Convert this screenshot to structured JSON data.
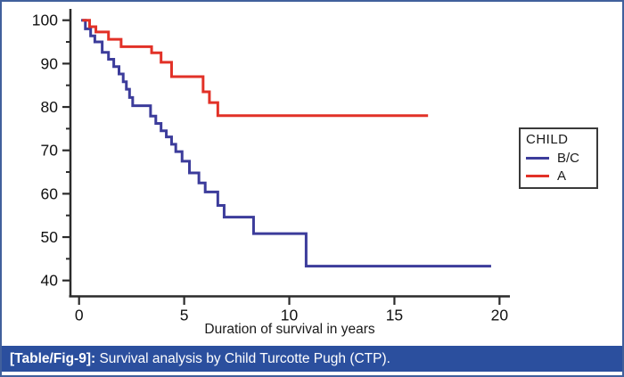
{
  "figure": {
    "caption_label": "[Table/Fig-9]:",
    "caption_text": " Survival analysis by Child Turcotte Pugh (CTP).",
    "caption_bg": "#2b4f9e",
    "border_color": "#41609c"
  },
  "chart_data": {
    "type": "line",
    "subtype": "kaplan-meier-step",
    "title": "",
    "xlabel": "Duration of survival in years",
    "ylabel": "",
    "xlim": [
      0,
      20
    ],
    "ylim": [
      40,
      100
    ],
    "x_ticks": [
      0,
      5,
      10,
      15,
      20
    ],
    "y_ticks": [
      100,
      90,
      80,
      70,
      60,
      50,
      40
    ],
    "y_minor_ticks": [
      95,
      85,
      75,
      65,
      55,
      45
    ],
    "grid": false,
    "axis_color": "#2b2b2b",
    "legend": {
      "title": "CHILD",
      "position": "right",
      "entries": [
        {
          "label": "B/C",
          "color": "#3c3c9b"
        },
        {
          "label": "A",
          "color": "#e23127"
        }
      ]
    },
    "series": [
      {
        "name": "B/C",
        "color": "#3c3c9b",
        "steps": [
          [
            0.1,
            100
          ],
          [
            0.3,
            98.0
          ],
          [
            0.55,
            96.4
          ],
          [
            0.75,
            95.0
          ],
          [
            1.1,
            92.6
          ],
          [
            1.4,
            91.0
          ],
          [
            1.65,
            89.3
          ],
          [
            1.9,
            87.6
          ],
          [
            2.1,
            85.8
          ],
          [
            2.25,
            84.1
          ],
          [
            2.4,
            82.2
          ],
          [
            2.55,
            80.3
          ],
          [
            3.4,
            77.9
          ],
          [
            3.65,
            76.2
          ],
          [
            3.9,
            74.5
          ],
          [
            4.15,
            73.1
          ],
          [
            4.4,
            71.4
          ],
          [
            4.6,
            69.7
          ],
          [
            4.9,
            67.5
          ],
          [
            5.25,
            64.8
          ],
          [
            5.7,
            62.5
          ],
          [
            6.0,
            60.4
          ],
          [
            6.6,
            57.3
          ],
          [
            6.9,
            54.6
          ],
          [
            8.3,
            50.8
          ],
          [
            10.8,
            43.3
          ],
          [
            19.6,
            43.3
          ]
        ]
      },
      {
        "name": "A",
        "color": "#e23127",
        "steps": [
          [
            0.15,
            100
          ],
          [
            0.5,
            98.5
          ],
          [
            0.8,
            97.3
          ],
          [
            1.4,
            95.6
          ],
          [
            2.0,
            93.9
          ],
          [
            3.45,
            92.5
          ],
          [
            3.9,
            90.3
          ],
          [
            4.4,
            87.0
          ],
          [
            5.9,
            83.5
          ],
          [
            6.2,
            81.0
          ],
          [
            6.6,
            78.0
          ],
          [
            16.6,
            78.0
          ]
        ]
      }
    ]
  }
}
